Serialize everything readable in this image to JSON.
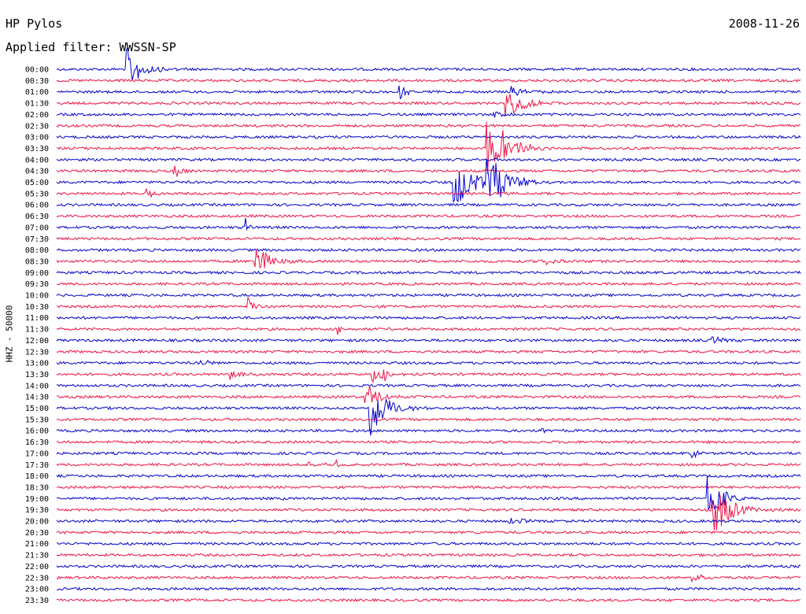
{
  "header": {
    "station": "HP Pylos",
    "date": "2008-11-26",
    "filter_label": "Applied filter: WWSSN-SP"
  },
  "chart_data": {
    "type": "line",
    "chart_kind": "helicorder",
    "channel_label": "HHZ - 50000",
    "row_minutes": 30,
    "time_unit": "minutes",
    "colors": [
      "#0000cc",
      "#ee1144"
    ],
    "row_labels": [
      "00:00",
      "00:30",
      "01:00",
      "01:30",
      "02:00",
      "02:30",
      "03:00",
      "03:30",
      "04:00",
      "04:30",
      "05:00",
      "05:30",
      "06:00",
      "06:30",
      "07:00",
      "07:30",
      "08:00",
      "08:30",
      "09:00",
      "09:30",
      "10:00",
      "10:30",
      "11:00",
      "11:30",
      "12:00",
      "12:30",
      "13:00",
      "13:30",
      "14:00",
      "14:30",
      "15:00",
      "15:30",
      "16:00",
      "16:30",
      "17:00",
      "17:30",
      "18:00",
      "18:30",
      "19:00",
      "19:30",
      "20:00",
      "20:30",
      "21:00",
      "21:30",
      "22:00",
      "22:30",
      "23:00",
      "23:30"
    ],
    "events": [
      {
        "row": 0,
        "minute": 2.8,
        "amplitude": 3.2,
        "duration": 1.2
      },
      {
        "row": 2,
        "minute": 13.8,
        "amplitude": 1.0,
        "duration": 0.6
      },
      {
        "row": 2,
        "minute": 18.3,
        "amplitude": 0.8,
        "duration": 1.0
      },
      {
        "row": 3,
        "minute": 18.0,
        "amplitude": 2.2,
        "duration": 1.5
      },
      {
        "row": 4,
        "minute": 17.6,
        "amplitude": 0.5,
        "duration": 0.8
      },
      {
        "row": 7,
        "minute": 17.3,
        "amplitude": 3.8,
        "duration": 1.2
      },
      {
        "row": 7,
        "minute": 18.0,
        "amplitude": 1.8,
        "duration": 1.5
      },
      {
        "row": 9,
        "minute": 4.7,
        "amplitude": 0.8,
        "duration": 1.0
      },
      {
        "row": 10,
        "minute": 16.0,
        "amplitude": 4.0,
        "duration": 1.5
      },
      {
        "row": 10,
        "minute": 17.3,
        "amplitude": 4.5,
        "duration": 1.5
      },
      {
        "row": 11,
        "minute": 3.6,
        "amplitude": 0.8,
        "duration": 0.7
      },
      {
        "row": 14,
        "minute": 7.6,
        "amplitude": 4.0,
        "duration": 0.2
      },
      {
        "row": 17,
        "minute": 8.0,
        "amplitude": 2.5,
        "duration": 1.2
      },
      {
        "row": 17,
        "minute": 19.5,
        "amplitude": 0.6,
        "duration": 1.0
      },
      {
        "row": 21,
        "minute": 7.7,
        "amplitude": 1.2,
        "duration": 0.4
      },
      {
        "row": 23,
        "minute": 11.3,
        "amplitude": 0.8,
        "duration": 0.3
      },
      {
        "row": 24,
        "minute": 26.4,
        "amplitude": 0.6,
        "duration": 1.0
      },
      {
        "row": 26,
        "minute": 5.8,
        "amplitude": 0.5,
        "duration": 0.7
      },
      {
        "row": 27,
        "minute": 7.0,
        "amplitude": 0.8,
        "duration": 0.8
      },
      {
        "row": 27,
        "minute": 12.7,
        "amplitude": 1.8,
        "duration": 0.6
      },
      {
        "row": 27,
        "minute": 13.1,
        "amplitude": 1.0,
        "duration": 0.6
      },
      {
        "row": 29,
        "minute": 12.4,
        "amplitude": 2.5,
        "duration": 1.0
      },
      {
        "row": 30,
        "minute": 12.6,
        "amplitude": 4.5,
        "duration": 1.3
      },
      {
        "row": 32,
        "minute": 19.5,
        "amplitude": 0.7,
        "duration": 0.6
      },
      {
        "row": 34,
        "minute": 25.6,
        "amplitude": 0.6,
        "duration": 0.6
      },
      {
        "row": 35,
        "minute": 10.1,
        "amplitude": 0.8,
        "duration": 0.8
      },
      {
        "row": 35,
        "minute": 11.2,
        "amplitude": 1.2,
        "duration": 0.2
      },
      {
        "row": 38,
        "minute": 26.2,
        "amplitude": 3.5,
        "duration": 1.2
      },
      {
        "row": 39,
        "minute": 26.4,
        "amplitude": 4.0,
        "duration": 1.5
      },
      {
        "row": 40,
        "minute": 18.2,
        "amplitude": 0.5,
        "duration": 1.2
      },
      {
        "row": 45,
        "minute": 25.6,
        "amplitude": 0.6,
        "duration": 1.0
      }
    ]
  }
}
